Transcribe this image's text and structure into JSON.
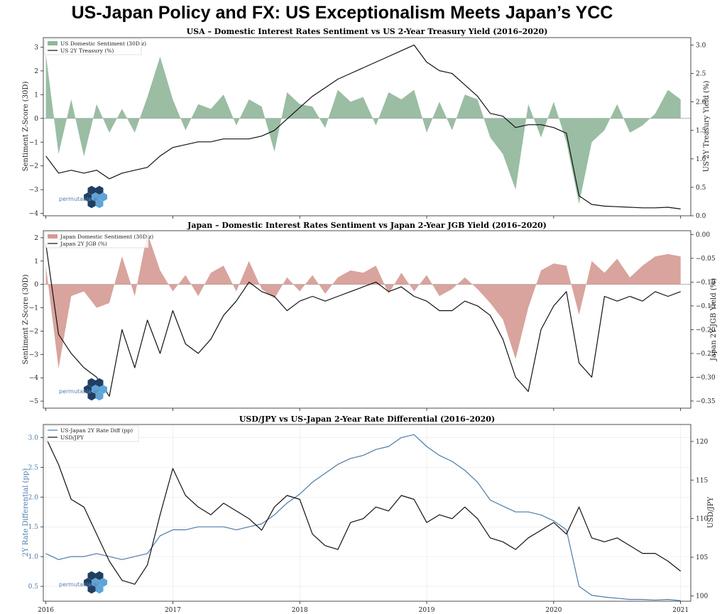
{
  "figure_title": "US-Japan Policy and FX: US Exceptionalism Meets Japan’s YCC",
  "logo_text": "permutable.ai",
  "colors": {
    "us_sentiment": "#8fb69a",
    "jp_sentiment": "#d49a92",
    "diff_line": "#4d7aa8",
    "black_line": "#111111",
    "zero_line": "#9a9a9a",
    "logo_dark": "#1f3f63",
    "logo_light": "#5ea4d8"
  },
  "chart_data": [
    {
      "type": "area",
      "title": "USA – Domestic Interest Rates Sentiment vs US 2-Year Treasury Yield (2016–2020)",
      "ylabel": "Sentiment Z-Score (30D)",
      "y2label": "US 2Y Treasury Yield (%)",
      "ylim": [
        -4.1,
        3.4
      ],
      "y2lim": [
        0.0,
        3.13
      ],
      "yticks": [
        "3",
        "2",
        "1",
        "0",
        "−1",
        "−2",
        "−3",
        "−4"
      ],
      "y2ticks": [
        "3.0",
        "2.5",
        "2.0",
        "1.5",
        "1.0",
        "0.5",
        "0.0"
      ],
      "legend": [
        "US Domestic Sentiment (30D z)",
        "US 2Y Treasury (%)"
      ],
      "legend_position": "top-left",
      "x": [
        2016.0,
        2016.1,
        2016.2,
        2016.3,
        2016.4,
        2016.5,
        2016.6,
        2016.7,
        2016.8,
        2016.9,
        2017.0,
        2017.1,
        2017.2,
        2017.3,
        2017.4,
        2017.5,
        2017.6,
        2017.7,
        2017.8,
        2017.9,
        2018.0,
        2018.1,
        2018.2,
        2018.3,
        2018.4,
        2018.5,
        2018.6,
        2018.7,
        2018.8,
        2018.9,
        2019.0,
        2019.1,
        2019.2,
        2019.3,
        2019.4,
        2019.5,
        2019.6,
        2019.7,
        2019.8,
        2019.9,
        2020.0,
        2020.1,
        2020.2,
        2020.3,
        2020.4,
        2020.5,
        2020.6,
        2020.7,
        2020.8,
        2020.9,
        2021.0
      ],
      "series": [
        {
          "name": "US Domestic Sentiment (30D z)",
          "kind": "area",
          "axis": "left",
          "values": [
            2.7,
            -1.5,
            0.8,
            -1.6,
            0.6,
            -0.6,
            0.4,
            -0.6,
            0.9,
            2.6,
            0.8,
            -0.5,
            0.6,
            0.4,
            1.0,
            -0.3,
            0.8,
            0.5,
            -1.4,
            1.1,
            0.6,
            0.5,
            -0.4,
            1.2,
            0.7,
            0.9,
            -0.3,
            1.1,
            0.8,
            1.2,
            -0.6,
            0.7,
            -0.5,
            1.0,
            0.8,
            -0.8,
            -1.5,
            -3.0,
            0.6,
            -0.8,
            0.7,
            -1.0,
            -3.6,
            -1.0,
            -0.5,
            0.6,
            -0.6,
            -0.3,
            0.2,
            1.2,
            0.8
          ]
        },
        {
          "name": "US 2Y Treasury (%)",
          "kind": "line",
          "axis": "right",
          "values": [
            1.05,
            0.75,
            0.8,
            0.75,
            0.8,
            0.65,
            0.75,
            0.8,
            0.85,
            1.05,
            1.2,
            1.25,
            1.3,
            1.3,
            1.35,
            1.35,
            1.35,
            1.4,
            1.5,
            1.7,
            1.9,
            2.1,
            2.25,
            2.4,
            2.5,
            2.6,
            2.7,
            2.8,
            2.9,
            3.0,
            2.7,
            2.55,
            2.5,
            2.3,
            2.1,
            1.8,
            1.75,
            1.55,
            1.6,
            1.6,
            1.55,
            1.45,
            0.35,
            0.2,
            0.17,
            0.16,
            0.15,
            0.14,
            0.14,
            0.15,
            0.12
          ]
        }
      ]
    },
    {
      "type": "area",
      "title": "Japan – Domestic Interest Rates Sentiment vs Japan 2-Year JGB Yield (2016–2020)",
      "ylabel": "Sentiment Z-Score (30D)",
      "y2label": "Japan 2Y JGB Yield (%)",
      "ylim": [
        -5.3,
        2.3
      ],
      "y2lim": [
        -0.365,
        0.008
      ],
      "yticks": [
        "2",
        "1",
        "0",
        "−1",
        "−2",
        "−3",
        "−4",
        "−5"
      ],
      "y2ticks": [
        "0.00",
        "−0.05",
        "−0.10",
        "−0.15",
        "−0.20",
        "−0.25",
        "−0.30",
        "−0.35"
      ],
      "legend": [
        "Japan Domestic Sentiment (30D z)",
        "Japan 2Y JGB (%)"
      ],
      "legend_position": "top-left",
      "x": [
        2016.0,
        2016.1,
        2016.2,
        2016.3,
        2016.4,
        2016.5,
        2016.6,
        2016.7,
        2016.8,
        2016.9,
        2017.0,
        2017.1,
        2017.2,
        2017.3,
        2017.4,
        2017.5,
        2017.6,
        2017.7,
        2017.8,
        2017.9,
        2018.0,
        2018.1,
        2018.2,
        2018.3,
        2018.4,
        2018.5,
        2018.6,
        2018.7,
        2018.8,
        2018.9,
        2019.0,
        2019.1,
        2019.2,
        2019.3,
        2019.4,
        2019.5,
        2019.6,
        2019.7,
        2019.8,
        2019.9,
        2020.0,
        2020.1,
        2020.2,
        2020.3,
        2020.4,
        2020.5,
        2020.6,
        2020.7,
        2020.8,
        2020.9,
        2021.0
      ],
      "series": [
        {
          "name": "Japan Domestic Sentiment (30D z)",
          "kind": "area",
          "axis": "left",
          "values": [
            0.8,
            -3.6,
            -0.5,
            -0.3,
            -1.0,
            -0.8,
            1.2,
            -0.5,
            2.2,
            0.6,
            -0.3,
            0.4,
            -0.5,
            0.5,
            0.8,
            -0.3,
            1.0,
            -0.2,
            -0.6,
            0.3,
            -0.3,
            0.4,
            -0.4,
            0.3,
            0.6,
            0.5,
            0.8,
            -0.4,
            0.5,
            -0.3,
            0.4,
            -0.5,
            -0.2,
            0.3,
            -0.2,
            -0.8,
            -1.5,
            -3.2,
            -1.0,
            0.6,
            0.9,
            0.8,
            -1.3,
            1.0,
            0.5,
            1.1,
            0.3,
            0.8,
            1.2,
            1.3,
            1.2
          ]
        },
        {
          "name": "Japan 2Y JGB (%)",
          "kind": "line",
          "axis": "right",
          "values": [
            -0.02,
            -0.21,
            -0.25,
            -0.28,
            -0.3,
            -0.34,
            -0.2,
            -0.28,
            -0.18,
            -0.25,
            -0.16,
            -0.23,
            -0.25,
            -0.22,
            -0.17,
            -0.14,
            -0.1,
            -0.12,
            -0.13,
            -0.16,
            -0.14,
            -0.13,
            -0.14,
            -0.13,
            -0.12,
            -0.11,
            -0.1,
            -0.12,
            -0.11,
            -0.13,
            -0.14,
            -0.16,
            -0.16,
            -0.14,
            -0.15,
            -0.17,
            -0.22,
            -0.3,
            -0.33,
            -0.2,
            -0.15,
            -0.12,
            -0.27,
            -0.3,
            -0.13,
            -0.14,
            -0.13,
            -0.14,
            -0.12,
            -0.13,
            -0.12
          ]
        }
      ]
    },
    {
      "type": "line",
      "title": "USD/JPY vs US-Japan 2-Year Rate Differential (2016–2020)",
      "ylabel": "2Y Rate Differential (pp)",
      "y2label": "USD/JPY",
      "ylim": [
        0.25,
        3.22
      ],
      "y2lim": [
        99.3,
        122.2
      ],
      "yticks": [
        "3.0",
        "2.5",
        "2.0",
        "1.5",
        "1.0",
        "0.5"
      ],
      "y2ticks": [
        "120",
        "115",
        "110",
        "105",
        "100"
      ],
      "xticks": [
        "2016",
        "2017",
        "2018",
        "2019",
        "2020",
        "2021"
      ],
      "legend": [
        "US-Japan 2Y Rate Diff (pp)",
        "USD/JPY"
      ],
      "legend_position": "top-left",
      "x": [
        2016.0,
        2016.1,
        2016.2,
        2016.3,
        2016.4,
        2016.5,
        2016.6,
        2016.7,
        2016.8,
        2016.9,
        2017.0,
        2017.1,
        2017.2,
        2017.3,
        2017.4,
        2017.5,
        2017.6,
        2017.7,
        2017.8,
        2017.9,
        2018.0,
        2018.1,
        2018.2,
        2018.3,
        2018.4,
        2018.5,
        2018.6,
        2018.7,
        2018.8,
        2018.9,
        2019.0,
        2019.1,
        2019.2,
        2019.3,
        2019.4,
        2019.5,
        2019.6,
        2019.7,
        2019.8,
        2019.9,
        2020.0,
        2020.1,
        2020.2,
        2020.3,
        2020.4,
        2020.5,
        2020.6,
        2020.7,
        2020.8,
        2020.9,
        2021.0
      ],
      "series": [
        {
          "name": "US-Japan 2Y Rate Diff (pp)",
          "kind": "line",
          "axis": "left",
          "values": [
            1.05,
            0.95,
            1.0,
            1.0,
            1.05,
            1.0,
            0.95,
            1.0,
            1.05,
            1.35,
            1.45,
            1.45,
            1.5,
            1.5,
            1.5,
            1.45,
            1.5,
            1.55,
            1.7,
            1.9,
            2.05,
            2.25,
            2.4,
            2.55,
            2.65,
            2.7,
            2.8,
            2.85,
            3.0,
            3.05,
            2.85,
            2.7,
            2.6,
            2.45,
            2.25,
            1.95,
            1.85,
            1.75,
            1.75,
            1.7,
            1.6,
            1.45,
            0.5,
            0.35,
            0.32,
            0.3,
            0.28,
            0.28,
            0.27,
            0.28,
            0.26
          ]
        },
        {
          "name": "USD/JPY",
          "kind": "line",
          "axis": "right",
          "values": [
            120.5,
            117.0,
            112.5,
            111.5,
            108.0,
            104.5,
            102.0,
            101.5,
            104.0,
            110.5,
            116.5,
            113.0,
            111.5,
            110.5,
            112.0,
            111.0,
            110.0,
            108.5,
            111.5,
            113.0,
            112.5,
            108.0,
            106.5,
            106.0,
            109.5,
            110.0,
            111.5,
            111.0,
            113.0,
            112.5,
            109.5,
            110.5,
            110.0,
            111.5,
            110.0,
            107.5,
            107.0,
            106.0,
            107.5,
            108.5,
            109.5,
            108.0,
            111.5,
            107.5,
            107.0,
            107.5,
            106.5,
            105.5,
            105.5,
            104.5,
            103.2
          ]
        }
      ]
    }
  ]
}
